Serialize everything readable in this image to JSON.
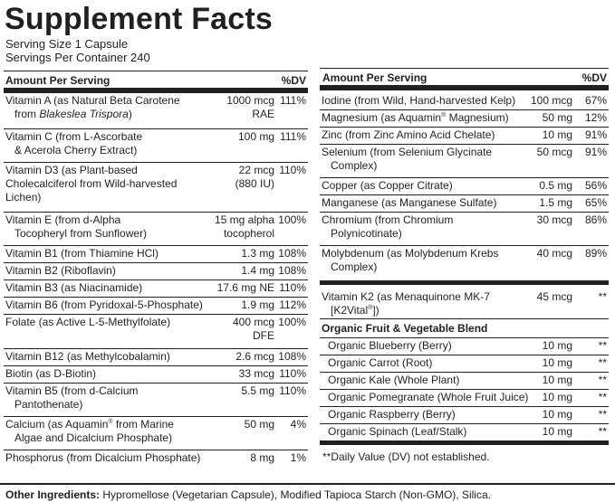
{
  "title": "Supplement Facts",
  "serving_size": "Serving Size 1 Capsule",
  "servings_per_container": "Servings Per Container 240",
  "header": {
    "amount": "Amount Per Serving",
    "dv": "%DV"
  },
  "left_rows": [
    {
      "l1": "Vitamin A (as Natural Beta Carotene",
      "l2_pre": "from ",
      "l2_italic": "Blakeslea Trispora",
      "l2_post": ")",
      "a1": "1000 mcg",
      "a2": "RAE",
      "dv": "111%"
    },
    {
      "l1": "Vitamin C (from L-Ascorbate",
      "l2": "& Acerola Cherry Extract)",
      "a1": "100 mg",
      "dv": "111%"
    },
    {
      "l1": "Vitamin D3 (as Plant-based",
      "l2": "Cholecalciferol from Wild-harvested",
      "l3": "Lichen)",
      "a1": "22 mcg",
      "a2": "(880 IU)",
      "dv": "110%"
    },
    {
      "l1": "Vitamin E (from d-Alpha",
      "l2": "Tocopheryl from Sunflower)",
      "a1": "15 mg alpha",
      "a2": "tocopherol",
      "dv": "100%"
    },
    {
      "l1": "Vitamin B1 (from Thiamine HCl)",
      "a1": "1.3 mg",
      "dv": "108%"
    },
    {
      "l1": "Vitamin B2 (Riboflavin)",
      "a1": "1.4 mg",
      "dv": "108%"
    },
    {
      "l1": "Vitamin B3 (as Niacinamide)",
      "a1": "17.6 mg NE",
      "dv": "110%"
    },
    {
      "l1": "Vitamin B6 (from Pyridoxal-5-Phosphate)",
      "a1": "1.9 mg",
      "dv": "112%"
    },
    {
      "l1": "Folate (as Active L-5-Methylfolate)",
      "a1": "400 mcg",
      "a2": "DFE",
      "dv": "100%"
    },
    {
      "l1": "Vitamin B12 (as Methylcobalamin)",
      "a1": "2.6 mcg",
      "dv": "108%"
    },
    {
      "l1": "Biotin (as D-Biotin)",
      "a1": "33 mcg",
      "dv": "110%"
    },
    {
      "l1": "Vitamin B5 (from d-Calcium",
      "l2": "Pantothenate)",
      "a1": "5.5 mg",
      "dv": "110%"
    },
    {
      "l1_pre": "Calcium (as Aquamin",
      "l1_sup": "®",
      "l1_post": " from Marine",
      "l2": "Algae and Dicalcium Phosphate)",
      "a1": "50 mg",
      "dv": "4%"
    },
    {
      "l1": "Phosphorus (from Dicalcium Phosphate)",
      "a1": "8 mg",
      "dv": "1%"
    }
  ],
  "right_rows": [
    {
      "l1": "Iodine (from Wild, Hand-harvested Kelp)",
      "a1": "100 mcg",
      "dv": "67%"
    },
    {
      "l1_pre": "Magnesium (as Aquamin",
      "l1_sup": "®",
      "l1_post": " Magnesium)",
      "a1": "50 mg",
      "dv": "12%"
    },
    {
      "l1": "Zinc (from Zinc Amino Acid Chelate)",
      "a1": "10 mg",
      "dv": "91%"
    },
    {
      "l1": "Selenium (from Selenium Glycinate",
      "l2": "Complex)",
      "a1": "50 mcg",
      "dv": "91%"
    },
    {
      "l1": "Copper (as Copper Citrate)",
      "a1": "0.5 mg",
      "dv": "56%"
    },
    {
      "l1": "Manganese (as Manganese Sulfate)",
      "a1": "1.5 mg",
      "dv": "65%"
    },
    {
      "l1": "Chromium (from Chromium",
      "l2": "Polynicotinate)",
      "a1": "30 mcg",
      "dv": "86%"
    },
    {
      "l1": "Molybdenum (as Molybdenum Krebs",
      "l2": "Complex)",
      "a1": "40 mcg",
      "dv": "89%"
    }
  ],
  "vitamin_k2": {
    "l1": "Vitamin K2 (as Menaquinone MK-7",
    "l2_pre": "[K2Vital",
    "l2_sup": "®",
    "l2_post": "])",
    "a1": "45 mcg",
    "dv": "**"
  },
  "blend_title": "Organic Fruit & Vegetable Blend",
  "blend_rows": [
    {
      "name": "Organic Blueberry (Berry)",
      "a1": "10 mg",
      "dv": "**"
    },
    {
      "name": "Organic Carrot (Root)",
      "a1": "10 mg",
      "dv": "**"
    },
    {
      "name": "Organic Kale (Whole Plant)",
      "a1": "10 mg",
      "dv": "**"
    },
    {
      "name": "Organic Pomegranate (Whole Fruit Juice)",
      "a1": "10 mg",
      "dv": "**"
    },
    {
      "name": "Organic Raspberry (Berry)",
      "a1": "10 mg",
      "dv": "**"
    },
    {
      "name": "Organic  Spinach (Leaf/Stalk)",
      "a1": "10 mg",
      "dv": "**"
    }
  ],
  "footnote": "**Daily Value (DV) not established.",
  "other_label": "Other Ingredients:",
  "other_text": " Hypromellose (Vegetarian Capsule), Modified Tapioca Starch (Non-GMO), Silica."
}
